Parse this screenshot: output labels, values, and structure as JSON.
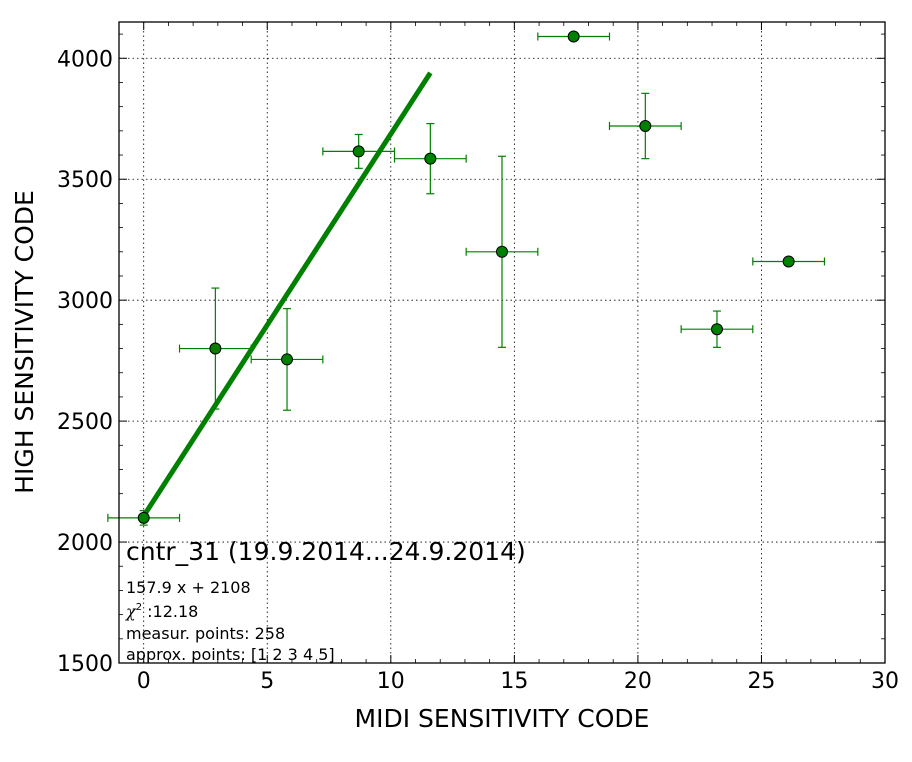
{
  "chart_data": {
    "type": "scatter",
    "xlabel": "MIDI SENSITIVITY CODE",
    "ylabel": "HIGH SENSITIVITY CODE",
    "xlim": [
      -1,
      30
    ],
    "ylim": [
      1500,
      4150
    ],
    "x_ticks": [
      0,
      5,
      10,
      15,
      20,
      25,
      30
    ],
    "y_ticks": [
      1500,
      2000,
      2500,
      3000,
      3500,
      4000
    ],
    "grid": true,
    "color": "#008000",
    "points": [
      {
        "x": 0.0,
        "y": 2100,
        "xerr": 1.45,
        "yerr": 30
      },
      {
        "x": 2.9,
        "y": 2800,
        "xerr": 1.45,
        "yerr": 250
      },
      {
        "x": 5.8,
        "y": 2755,
        "xerr": 1.45,
        "yerr": 210
      },
      {
        "x": 8.7,
        "y": 3615,
        "xerr": 1.45,
        "yerr": 70
      },
      {
        "x": 11.6,
        "y": 3585,
        "xerr": 1.45,
        "yerr": 145
      },
      {
        "x": 14.5,
        "y": 3200,
        "xerr": 1.45,
        "yerr": 395
      },
      {
        "x": 17.4,
        "y": 4090,
        "xerr": 1.45,
        "yerr": 0
      },
      {
        "x": 20.3,
        "y": 3720,
        "xerr": 1.45,
        "yerr": 135
      },
      {
        "x": 23.2,
        "y": 2880,
        "xerr": 1.45,
        "yerr": 75
      },
      {
        "x": 26.1,
        "y": 3160,
        "xerr": 1.45,
        "yerr": 0
      }
    ],
    "fit": {
      "slope": 157.9,
      "intercept": 2108,
      "x_range": [
        0,
        11.6
      ]
    },
    "annotations": {
      "title": "cntr_31 (19.9.2014...24.9.2014)",
      "equation": "157.9 x + 2108",
      "chi_symbol": "χ",
      "chi_sup": "2",
      "chi_value": " :12.18",
      "measur_points": "measur. points: 258",
      "approx_points": "approx. points: [1 2 3 4 5]"
    }
  }
}
